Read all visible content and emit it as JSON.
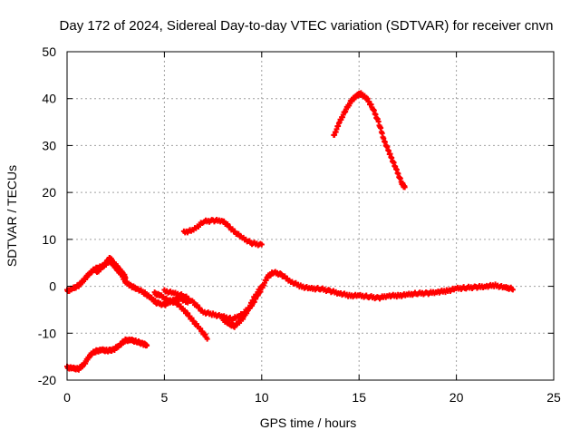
{
  "chart_data": {
    "type": "scatter",
    "title": "Day 172 of 2024, Sidereal Day-to-day VTEC variation (SDTVAR) for receiver cnvn",
    "xlabel": "GPS time / hours",
    "ylabel": "SDTVAR / TECUs",
    "xlim": [
      0,
      25
    ],
    "ylim": [
      -20,
      50
    ],
    "xticks": [
      0,
      5,
      10,
      15,
      20,
      25
    ],
    "yticks": [
      -20,
      -10,
      0,
      10,
      20,
      30,
      40,
      50
    ],
    "grid": true,
    "marker": "plus",
    "series_color": "#ff0000",
    "series": [
      {
        "name": "main trace early",
        "x": [
          0.0,
          0.3,
          0.6,
          0.9,
          1.2,
          1.5,
          1.8,
          2.0,
          2.2,
          2.4,
          2.6,
          2.8,
          3.0,
          3.3,
          3.6,
          4.0,
          4.3,
          4.6,
          5.0,
          5.4,
          5.8,
          6.2
        ],
        "y": [
          -1.0,
          -0.5,
          0.2,
          1.5,
          3.0,
          3.8,
          4.2,
          4.8,
          5.5,
          4.5,
          3.5,
          2.5,
          1.0,
          0.0,
          -0.5,
          -1.5,
          -2.5,
          -3.5,
          -4.0,
          -3.0,
          -2.5,
          -3.5
        ]
      },
      {
        "name": "main trace early upper",
        "x": [
          1.5,
          1.8,
          2.0,
          2.2,
          2.4,
          2.6,
          2.8,
          3.0
        ],
        "y": [
          3.0,
          4.0,
          5.0,
          6.0,
          5.0,
          4.0,
          3.0,
          2.0
        ]
      },
      {
        "name": "main trace low branch",
        "x": [
          4.5,
          4.8,
          5.2,
          5.6,
          6.0,
          6.4,
          6.8,
          7.2
        ],
        "y": [
          -1.5,
          -2.0,
          -3.0,
          -3.5,
          -5.0,
          -7.0,
          -9.0,
          -11.0
        ]
      },
      {
        "name": "main trace mid",
        "x": [
          5.0,
          5.5,
          6.0,
          6.5,
          7.0,
          7.5,
          8.0,
          8.5,
          9.0,
          9.5,
          10.0,
          10.3,
          10.6,
          11.0,
          11.5,
          12.0,
          12.5,
          13.0,
          13.5,
          14.0,
          14.5,
          15.0,
          15.5,
          16.0,
          16.5,
          17.0,
          17.5,
          18.0,
          18.5,
          19.0,
          19.5,
          20.0,
          20.5,
          21.0,
          21.5,
          22.0,
          22.5,
          22.9
        ],
        "y": [
          -1.0,
          -1.5,
          -2.0,
          -3.5,
          -5.5,
          -6.0,
          -6.5,
          -7.0,
          -6.0,
          -4.0,
          -0.5,
          2.0,
          3.0,
          2.5,
          1.0,
          0.0,
          -0.5,
          -0.5,
          -1.0,
          -1.5,
          -2.0,
          -2.0,
          -2.2,
          -2.5,
          -2.0,
          -2.0,
          -1.8,
          -1.5,
          -1.5,
          -1.2,
          -1.0,
          -0.5,
          -0.3,
          -0.2,
          0.0,
          0.2,
          -0.3,
          -0.5
        ]
      },
      {
        "name": "main trace dip",
        "x": [
          8.0,
          8.3,
          8.6,
          9.0,
          9.3,
          9.6,
          10.0
        ],
        "y": [
          -7.0,
          -8.0,
          -8.5,
          -7.0,
          -5.0,
          -2.5,
          0.0
        ]
      },
      {
        "name": "late afternoon arc",
        "x": [
          13.7,
          14.0,
          14.3,
          14.6,
          14.9,
          15.1,
          15.4,
          15.7,
          16.0,
          16.3,
          16.6,
          16.9,
          17.2,
          17.35
        ],
        "y": [
          32.0,
          35.0,
          37.5,
          39.5,
          40.8,
          41.0,
          40.0,
          38.0,
          35.0,
          31.0,
          28.0,
          25.0,
          22.0,
          21.0
        ]
      },
      {
        "name": "midday hump",
        "x": [
          6.0,
          6.5,
          7.0,
          7.5,
          8.0,
          8.5,
          9.0,
          9.5,
          10.0
        ],
        "y": [
          11.5,
          12.0,
          13.8,
          14.0,
          14.0,
          12.0,
          10.3,
          9.2,
          8.8
        ]
      },
      {
        "name": "early low trace",
        "x": [
          0.0,
          0.3,
          0.6,
          0.9,
          1.2,
          1.5,
          1.8,
          2.1,
          2.4,
          2.7,
          3.0,
          3.3,
          3.6,
          3.9,
          4.1
        ],
        "y": [
          -17.3,
          -17.5,
          -17.6,
          -16.5,
          -14.5,
          -13.8,
          -13.6,
          -13.7,
          -13.5,
          -12.5,
          -11.5,
          -11.5,
          -11.8,
          -12.3,
          -12.5
        ]
      }
    ]
  }
}
